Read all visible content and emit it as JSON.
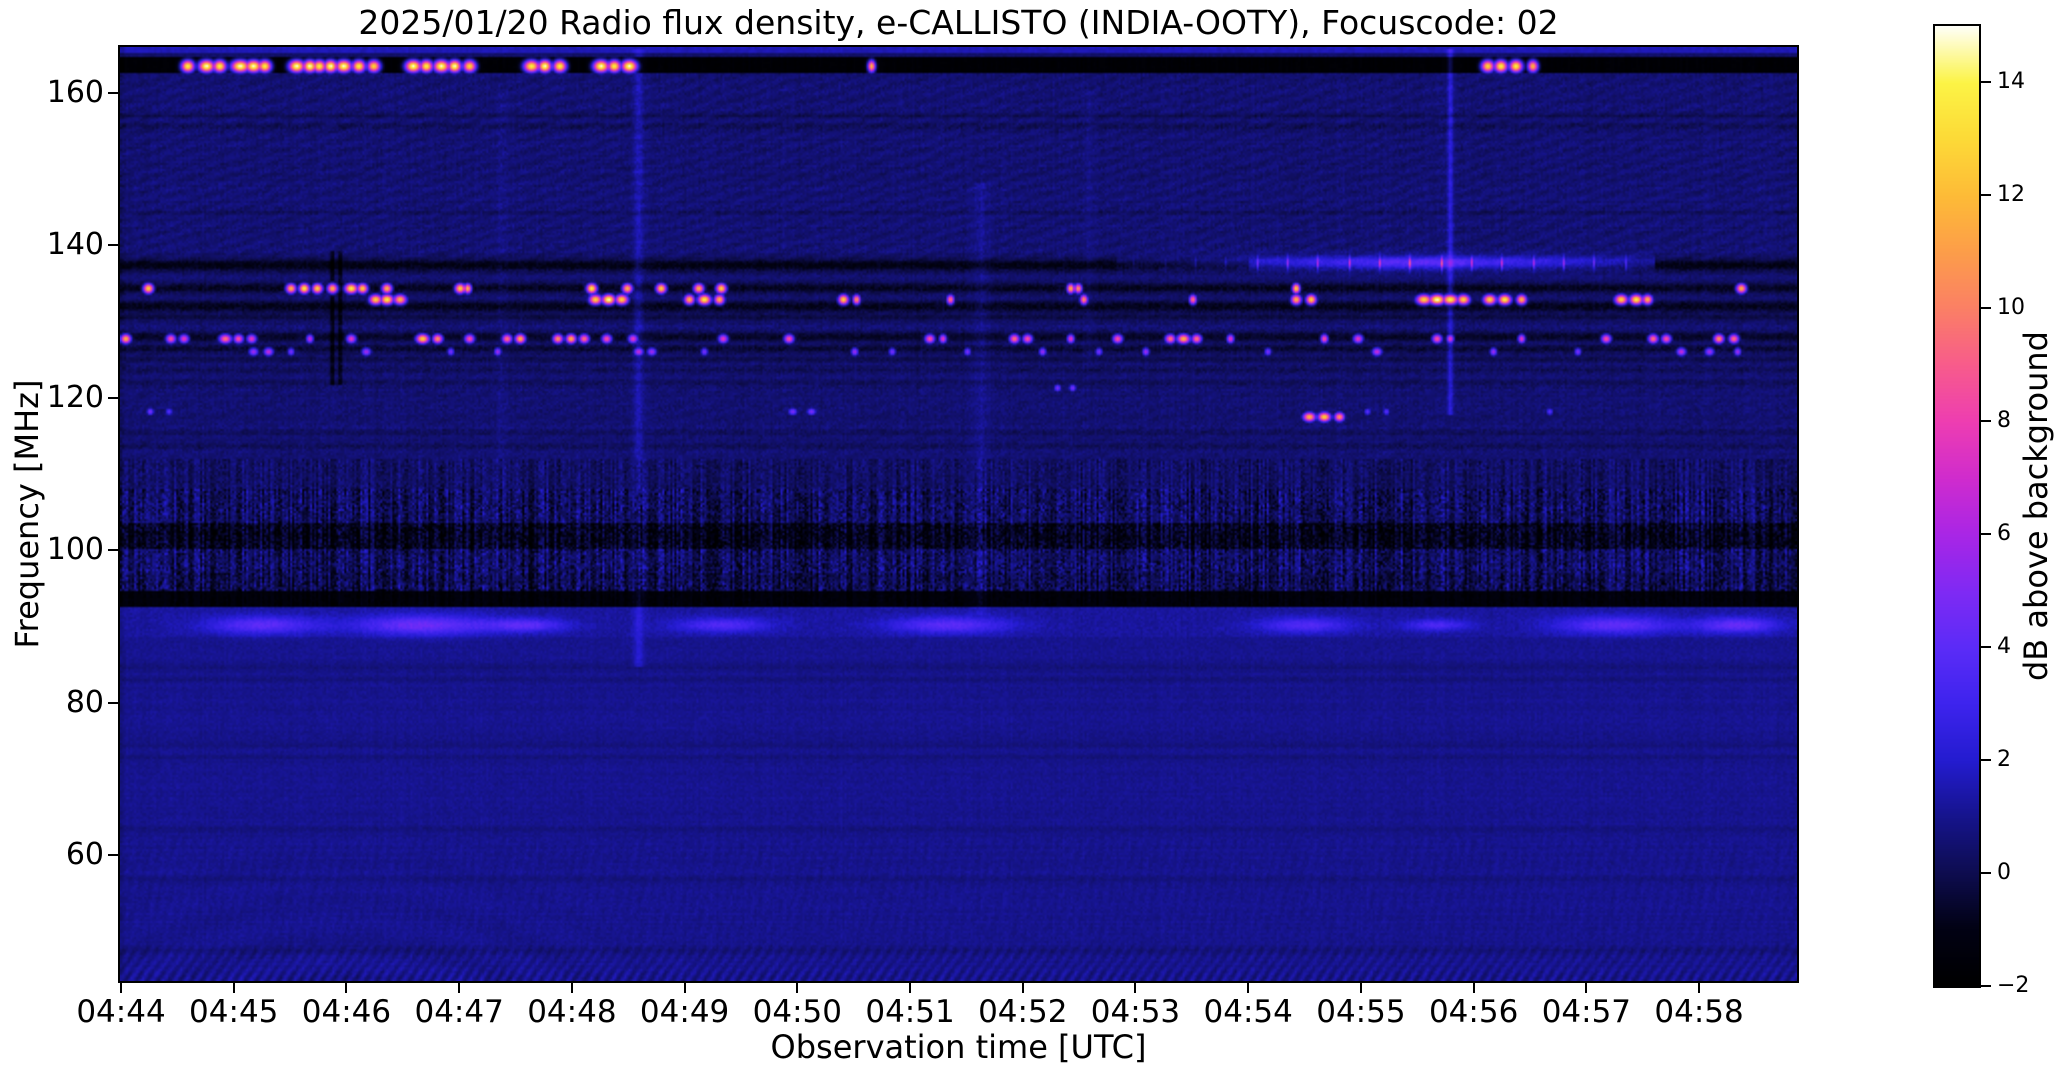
{
  "figure": {
    "kind": "spectrogram quicklook plot"
  },
  "chart_data": {
    "type": "heatmap",
    "title": "2025/01/20  Radio flux density, e-CALLISTO (INDIA-OOTY), Focuscode: 02",
    "xlabel": "Observation time [UTC]",
    "ylabel": "Frequency [MHz]",
    "x_ticks": [
      "04:44",
      "04:45",
      "04:46",
      "04:47",
      "04:48",
      "04:49",
      "04:50",
      "04:51",
      "04:52",
      "04:53",
      "04:54",
      "04:55",
      "04:56",
      "04:57",
      "04:58"
    ],
    "x_tick_interval_s": 60,
    "x_start": "04:44",
    "x_end_approx": "04:58:52",
    "y_ticks": [
      160,
      140,
      120,
      100,
      80,
      60
    ],
    "y_range_mhz": [
      43.5,
      166.0
    ],
    "grid": false,
    "colorbar": {
      "label": "dB above background",
      "range": [
        -2,
        15
      ],
      "ticks": [
        {
          "v": 14,
          "label": "14"
        },
        {
          "v": 12,
          "label": "12"
        },
        {
          "v": 10,
          "label": "10"
        },
        {
          "v": 8,
          "label": "8"
        },
        {
          "v": 6,
          "label": "6"
        },
        {
          "v": 4,
          "label": "4"
        },
        {
          "v": 2,
          "label": "2"
        },
        {
          "v": 0,
          "label": "0"
        },
        {
          "v": -2,
          "label": "−2"
        }
      ]
    },
    "colormap_stops": [
      [
        0.0,
        "#000000"
      ],
      [
        0.06,
        "#020214"
      ],
      [
        0.118,
        "#0e0d50"
      ],
      [
        0.176,
        "#16148c"
      ],
      [
        0.235,
        "#241cd0"
      ],
      [
        0.294,
        "#3e24ee"
      ],
      [
        0.353,
        "#5c2cf8"
      ],
      [
        0.412,
        "#802af4"
      ],
      [
        0.471,
        "#aa26e6"
      ],
      [
        0.529,
        "#d02cce"
      ],
      [
        0.588,
        "#ee3eb2"
      ],
      [
        0.647,
        "#f85c8c"
      ],
      [
        0.706,
        "#fb8066"
      ],
      [
        0.765,
        "#fd9e4a"
      ],
      [
        0.824,
        "#fdbc37"
      ],
      [
        0.882,
        "#fdda37"
      ],
      [
        0.941,
        "#fcf446"
      ],
      [
        1.0,
        "#fffff8"
      ]
    ],
    "background_db": {
      "upper_band": 0.55,
      "fm_band": 0.45,
      "lower_band": 1.0
    },
    "structure_bands_mhz": {
      "top_edge_blue_line": [
        165.2,
        166.0
      ],
      "black_rfi_channel": [
        162.65,
        164.7
      ],
      "fm_speckle": [
        94.6,
        112.0
      ],
      "fm_dark_sub": [
        100.2,
        103.6
      ],
      "fm_black": [
        92.6,
        94.6
      ],
      "fm_glow": [
        88.6,
        92.4
      ],
      "bottom_scallop_top": 49.8
    },
    "dark_rows": [
      [
        137.35,
        0.55,
        -1.6
      ],
      [
        134.45,
        0.45,
        -1.4
      ],
      [
        132.0,
        0.5,
        -1.5
      ],
      [
        130.6,
        0.3,
        -0.8
      ],
      [
        128.0,
        0.45,
        -1.2
      ],
      [
        126.4,
        0.35,
        -0.9
      ],
      [
        125.0,
        0.3,
        -0.7
      ],
      [
        157.0,
        0.25,
        -0.5
      ],
      [
        155.6,
        0.25,
        -0.45
      ],
      [
        144.3,
        0.2,
        -0.35
      ],
      [
        123.6,
        0.25,
        -0.55
      ],
      [
        121.9,
        0.25,
        -0.5
      ],
      [
        115.4,
        0.25,
        -0.45
      ],
      [
        113.7,
        0.25,
        -0.4
      ],
      [
        84.6,
        0.3,
        -0.4
      ],
      [
        83.1,
        0.25,
        -0.3
      ],
      [
        74.4,
        0.3,
        -0.35
      ],
      [
        72.9,
        0.25,
        -0.3
      ],
      [
        63.4,
        0.3,
        -0.3
      ],
      [
        56.9,
        0.3,
        -0.25
      ],
      [
        47.6,
        0.4,
        -0.35
      ]
    ],
    "rfi_rows": [
      {
        "f": 163.6,
        "h": 1.15,
        "blobs": [
          [
            35,
            5,
            14
          ],
          [
            45,
            6,
            15
          ],
          [
            52,
            5,
            14
          ],
          [
            63,
            7,
            15
          ],
          [
            70,
            6,
            15
          ],
          [
            76,
            5,
            14
          ],
          [
            93,
            6,
            15
          ],
          [
            100,
            5,
            15
          ],
          [
            105,
            5,
            14
          ],
          [
            111,
            5,
            15
          ],
          [
            118,
            6,
            15
          ],
          [
            126,
            5,
            14
          ],
          [
            134,
            5,
            13
          ],
          [
            155,
            6,
            15
          ],
          [
            162,
            5,
            14
          ],
          [
            170,
            6,
            15
          ],
          [
            177,
            5,
            15
          ],
          [
            185,
            5,
            13
          ],
          [
            218,
            6,
            14
          ],
          [
            225,
            5,
            15
          ],
          [
            233,
            5,
            14
          ],
          [
            255,
            6,
            15
          ],
          [
            262,
            5,
            14
          ],
          [
            270,
            6,
            15
          ],
          [
            399,
            3,
            12
          ],
          [
            727,
            5,
            13
          ],
          [
            734,
            5,
            14
          ],
          [
            742,
            5,
            14
          ],
          [
            751,
            4,
            12
          ]
        ]
      },
      {
        "f": 134.45,
        "h": 0.95,
        "blobs": [
          [
            14,
            4,
            13
          ],
          [
            90,
            4,
            12
          ],
          [
            97,
            4,
            14
          ],
          [
            104,
            4,
            13
          ],
          [
            112,
            4,
            12
          ],
          [
            122,
            5,
            14
          ],
          [
            128,
            4,
            13
          ],
          [
            141,
            4,
            12
          ],
          [
            180,
            4,
            13
          ],
          [
            184,
            3,
            12
          ],
          [
            250,
            4,
            14
          ],
          [
            269,
            4,
            12
          ],
          [
            287,
            4,
            13
          ],
          [
            307,
            4,
            12
          ],
          [
            319,
            4,
            13
          ],
          [
            505,
            3,
            12
          ],
          [
            509,
            3,
            11
          ],
          [
            625,
            3,
            13
          ],
          [
            862,
            4,
            12
          ]
        ]
      },
      {
        "f": 133.0,
        "h": 0.95,
        "blobs": [
          [
            135,
            5,
            13
          ],
          [
            141,
            5,
            14
          ],
          [
            148,
            5,
            12
          ],
          [
            252,
            5,
            13
          ],
          [
            259,
            5,
            15
          ],
          [
            266,
            5,
            13
          ],
          [
            302,
            4,
            12
          ],
          [
            310,
            5,
            14
          ],
          [
            318,
            4,
            12
          ],
          [
            384,
            4,
            13
          ],
          [
            391,
            3,
            11
          ],
          [
            441,
            3,
            10
          ],
          [
            512,
            3,
            11
          ],
          [
            570,
            3,
            10
          ],
          [
            625,
            4,
            12
          ],
          [
            633,
            4,
            13
          ],
          [
            693,
            6,
            13
          ],
          [
            700,
            6,
            15
          ],
          [
            707,
            6,
            14
          ],
          [
            714,
            5,
            13
          ],
          [
            728,
            5,
            13
          ],
          [
            736,
            5,
            14
          ],
          [
            745,
            4,
            12
          ],
          [
            798,
            5,
            13
          ],
          [
            806,
            5,
            14
          ],
          [
            812,
            4,
            12
          ]
        ]
      },
      {
        "f": 127.85,
        "h": 0.9,
        "blobs": [
          [
            2,
            4,
            12
          ],
          [
            26,
            4,
            9
          ],
          [
            33,
            4,
            8
          ],
          [
            55,
            5,
            10
          ],
          [
            62,
            4,
            9
          ],
          [
            69,
            4,
            8
          ],
          [
            100,
            3,
            7
          ],
          [
            122,
            4,
            8
          ],
          [
            160,
            5,
            13
          ],
          [
            168,
            4,
            11
          ],
          [
            185,
            4,
            9
          ],
          [
            205,
            4,
            10
          ],
          [
            212,
            4,
            12
          ],
          [
            232,
            4,
            11
          ],
          [
            239,
            4,
            12
          ],
          [
            246,
            4,
            10
          ],
          [
            258,
            4,
            9
          ],
          [
            272,
            4,
            8
          ],
          [
            320,
            4,
            8
          ],
          [
            355,
            4,
            9
          ],
          [
            430,
            4,
            9
          ],
          [
            437,
            3,
            8
          ],
          [
            475,
            4,
            10
          ],
          [
            482,
            4,
            9
          ],
          [
            505,
            3,
            8
          ],
          [
            530,
            4,
            9
          ],
          [
            558,
            4,
            10
          ],
          [
            565,
            5,
            12
          ],
          [
            572,
            4,
            10
          ],
          [
            590,
            3,
            8
          ],
          [
            640,
            3,
            9
          ],
          [
            658,
            4,
            8
          ],
          [
            700,
            4,
            9
          ],
          [
            707,
            3,
            8
          ],
          [
            745,
            3,
            8
          ],
          [
            790,
            4,
            9
          ],
          [
            815,
            4,
            10
          ],
          [
            822,
            4,
            9
          ],
          [
            850,
            4,
            11
          ],
          [
            858,
            4,
            10
          ]
        ]
      },
      {
        "f": 126.15,
        "h": 0.85,
        "blobs": [
          [
            70,
            4,
            6
          ],
          [
            78,
            4,
            7
          ],
          [
            90,
            3,
            5
          ],
          [
            130,
            4,
            6
          ],
          [
            175,
            3,
            5
          ],
          [
            200,
            3,
            6
          ],
          [
            275,
            4,
            7
          ],
          [
            282,
            4,
            6
          ],
          [
            310,
            3,
            5
          ],
          [
            390,
            3,
            6
          ],
          [
            410,
            3,
            5
          ],
          [
            450,
            3,
            5
          ],
          [
            490,
            3,
            6
          ],
          [
            520,
            3,
            5
          ],
          [
            545,
            3,
            6
          ],
          [
            610,
            3,
            5
          ],
          [
            668,
            4,
            7
          ],
          [
            730,
            3,
            6
          ],
          [
            775,
            3,
            5
          ],
          [
            830,
            4,
            7
          ],
          [
            845,
            4,
            6
          ],
          [
            860,
            3,
            6
          ]
        ]
      },
      {
        "f": 121.4,
        "h": 0.8,
        "blobs": [
          [
            498,
            3,
            5
          ],
          [
            506,
            3,
            5
          ]
        ]
      },
      {
        "f": 118.3,
        "h": 0.8,
        "blobs": [
          [
            15,
            3,
            5
          ],
          [
            25,
            3,
            4
          ],
          [
            357,
            4,
            5
          ],
          [
            367,
            4,
            5
          ],
          [
            663,
            3,
            4
          ],
          [
            673,
            3,
            4
          ],
          [
            760,
            3,
            4
          ]
        ]
      },
      {
        "f": 117.6,
        "h": 0.9,
        "blobs": [
          [
            632,
            5,
            12
          ],
          [
            640,
            5,
            13
          ],
          [
            648,
            4,
            11
          ]
        ]
      }
    ],
    "drifting_streak": {
      "f": 137.75,
      "h": 0.6,
      "sec_peak": 693,
      "sigma_sec": 95,
      "peak_db": 4.2,
      "sec_start": 530,
      "sec_end": 815
    },
    "vertical_streaks": [
      [
        275,
        85,
        165.5,
        1.1,
        3.5
      ],
      [
        457,
        92,
        148,
        0.55,
        6
      ],
      [
        707,
        118,
        165.5,
        1.9,
        2.2
      ],
      [
        202,
        108,
        160,
        0.35,
        5
      ],
      [
        515,
        125,
        160,
        0.3,
        4
      ]
    ],
    "dark_columns": [
      [
        112,
        122,
        139,
        -1.8,
        1.2
      ],
      [
        116,
        122,
        139,
        -1.5,
        1.0
      ]
    ],
    "fm_glow_patches": [
      [
        75,
        40,
        1.6,
        2.8
      ],
      [
        160,
        50,
        1.8,
        3.2
      ],
      [
        215,
        30,
        1.2,
        2.6
      ],
      [
        320,
        35,
        1.3,
        2.4
      ],
      [
        440,
        45,
        1.5,
        2.7
      ],
      [
        630,
        35,
        1.4,
        2.4
      ],
      [
        700,
        25,
        1.0,
        2.2
      ],
      [
        795,
        45,
        1.6,
        2.8
      ],
      [
        860,
        30,
        1.4,
        3.0
      ]
    ],
    "fm_glow_center_mhz": 90.3
  }
}
